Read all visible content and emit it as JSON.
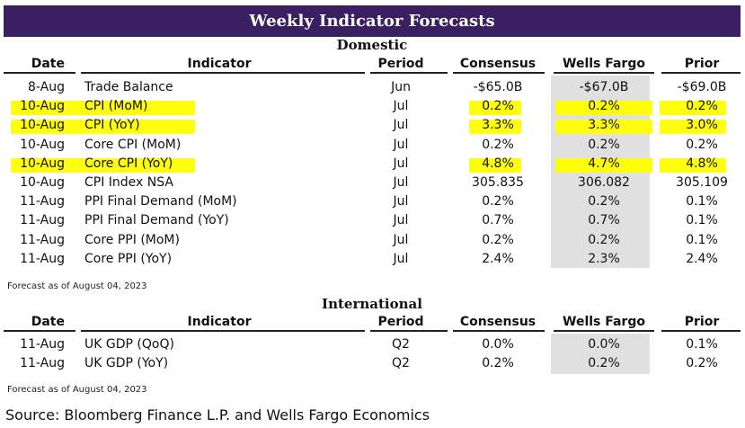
{
  "title": "Weekly Indicator Forecasts",
  "columns": {
    "date": "Date",
    "indicator": "Indicator",
    "period": "Period",
    "consensus": "Consensus",
    "wells_fargo": "Wells Fargo",
    "prior": "Prior"
  },
  "domestic": {
    "title": "Domestic",
    "rows": [
      {
        "date": "8-Aug",
        "indicator": "Trade Balance",
        "period": "Jun",
        "consensus": "-$65.0B",
        "wells_fargo": "-$67.0B",
        "prior": "-$69.0B",
        "highlighted": false
      },
      {
        "date": "10-Aug",
        "indicator": "CPI (MoM)",
        "period": "Jul",
        "consensus": "0.2%",
        "wells_fargo": "0.2%",
        "prior": "0.2%",
        "highlighted": true
      },
      {
        "date": "10-Aug",
        "indicator": "CPI (YoY)",
        "period": "Jul",
        "consensus": "3.3%",
        "wells_fargo": "3.3%",
        "prior": "3.0%",
        "highlighted": true
      },
      {
        "date": "10-Aug",
        "indicator": "Core CPI (MoM)",
        "period": "Jul",
        "consensus": "0.2%",
        "wells_fargo": "0.2%",
        "prior": "0.2%",
        "highlighted": false
      },
      {
        "date": "10-Aug",
        "indicator": "Core CPI (YoY)",
        "period": "Jul",
        "consensus": "4.8%",
        "wells_fargo": "4.7%",
        "prior": "4.8%",
        "highlighted": true
      },
      {
        "date": "10-Aug",
        "indicator": "CPI Index NSA",
        "period": "Jul",
        "consensus": "305.835",
        "wells_fargo": "306.082",
        "prior": "305.109",
        "highlighted": false
      },
      {
        "date": "11-Aug",
        "indicator": "PPI Final Demand (MoM)",
        "period": "Jul",
        "consensus": "0.2%",
        "wells_fargo": "0.2%",
        "prior": "0.1%",
        "highlighted": false
      },
      {
        "date": "11-Aug",
        "indicator": "PPI Final Demand (YoY)",
        "period": "Jul",
        "consensus": "0.7%",
        "wells_fargo": "0.7%",
        "prior": "0.1%",
        "highlighted": false
      },
      {
        "date": "11-Aug",
        "indicator": "Core PPI (MoM)",
        "period": "Jul",
        "consensus": "0.2%",
        "wells_fargo": "0.2%",
        "prior": "0.1%",
        "highlighted": false
      },
      {
        "date": "11-Aug",
        "indicator": "Core PPI (YoY)",
        "period": "Jul",
        "consensus": "2.4%",
        "wells_fargo": "2.3%",
        "prior": "2.4%",
        "highlighted": false
      }
    ],
    "footnote": "Forecast as of August 04, 2023"
  },
  "international": {
    "title": "International",
    "rows": [
      {
        "date": "11-Aug",
        "indicator": "UK GDP (QoQ)",
        "period": "Q2",
        "consensus": "0.0%",
        "wells_fargo": "0.0%",
        "prior": "0.1%",
        "highlighted": false
      },
      {
        "date": "11-Aug",
        "indicator": "UK GDP (YoY)",
        "period": "Q2",
        "consensus": "0.2%",
        "wells_fargo": "0.2%",
        "prior": "0.2%",
        "highlighted": false
      }
    ],
    "footnote": "Forecast as of August 04, 2023"
  },
  "source": "Source: Bloomberg Finance L.P. and Wells Fargo Economics",
  "colors": {
    "title_bg": "#3a1f62",
    "highlight": "#ffff00",
    "wells_fargo_shade": "#e0e0e0"
  }
}
